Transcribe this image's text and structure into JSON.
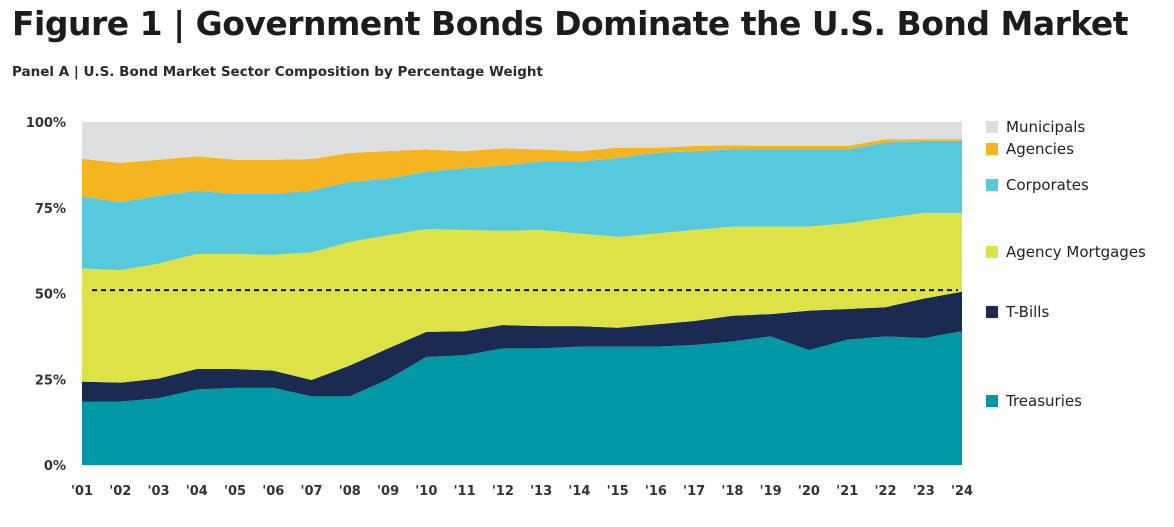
{
  "title": "Figure 1 | Government Bonds Dominate the U.S. Bond Market",
  "subtitle": "Panel A | U.S. Bond Market Sector Composition by Percentage Weight",
  "chart_data": {
    "type": "area",
    "stacked": true,
    "categories": [
      "'01",
      "'02",
      "'03",
      "'04",
      "'05",
      "'06",
      "'07",
      "'08",
      "'09",
      "'10",
      "'11",
      "'12",
      "'13",
      "'14",
      "'15",
      "'16",
      "'17",
      "'18",
      "'19",
      "'20",
      "'21",
      "'22",
      "'23",
      "'24"
    ],
    "ylim": [
      0,
      100
    ],
    "yticks": [
      0,
      25,
      50,
      75,
      100
    ],
    "ytick_labels": [
      "0%",
      "25%",
      "50%",
      "75%",
      "100%"
    ],
    "reference_line": 51,
    "grid": false,
    "legend_position": "right",
    "series": [
      {
        "name": "Treasuries",
        "color": "#0098a6",
        "values": [
          18.5,
          18.5,
          19.5,
          22,
          22.5,
          22.5,
          20,
          20,
          25,
          31.5,
          32,
          34,
          34,
          34.5,
          34.5,
          34.5,
          35,
          36,
          37.5,
          33.5,
          36.5,
          37.5,
          37,
          39
        ]
      },
      {
        "name": "T-Bills",
        "color": "#1b2a50",
        "values": [
          5.8,
          5.5,
          5.7,
          6,
          5.5,
          5,
          4.8,
          9,
          9,
          7.3,
          7,
          6.8,
          6.5,
          6,
          5.5,
          6.5,
          7,
          7.5,
          6.5,
          11.5,
          9,
          8.5,
          11.5,
          11.5
        ]
      },
      {
        "name": "Agency Mortgages",
        "color": "#dde346",
        "values": [
          33,
          32.8,
          33.5,
          33.5,
          33.5,
          33.8,
          37.2,
          36,
          33,
          30,
          29.5,
          27.5,
          28,
          27,
          26.5,
          26.5,
          26.5,
          26,
          25.5,
          24.5,
          25,
          26,
          25,
          23
        ]
      },
      {
        "name": "Corporates",
        "color": "#57c9dc",
        "values": [
          21,
          19.8,
          19.8,
          18.5,
          17.5,
          17.7,
          18,
          17.5,
          16.5,
          16.7,
          18,
          19,
          20,
          21,
          23,
          23.5,
          23,
          22.5,
          22.5,
          22.5,
          21.5,
          22,
          21,
          21
        ]
      },
      {
        "name": "Agencies",
        "color": "#f5b521",
        "values": [
          11,
          11.5,
          10.5,
          10,
          10,
          10,
          9.2,
          8.5,
          8,
          6.5,
          5,
          5,
          3.5,
          3,
          3,
          1.5,
          1.5,
          1.2,
          1,
          1,
          1,
          1,
          0.5,
          0.5
        ]
      },
      {
        "name": "Municipals",
        "color": "#dcdee0",
        "values": [
          10.7,
          11.9,
          11,
          10,
          11,
          11,
          10.8,
          9,
          8.5,
          8,
          8.5,
          7.7,
          8,
          8.5,
          7.5,
          7.5,
          7,
          6.8,
          7,
          7,
          7,
          5,
          5,
          5
        ]
      }
    ]
  }
}
